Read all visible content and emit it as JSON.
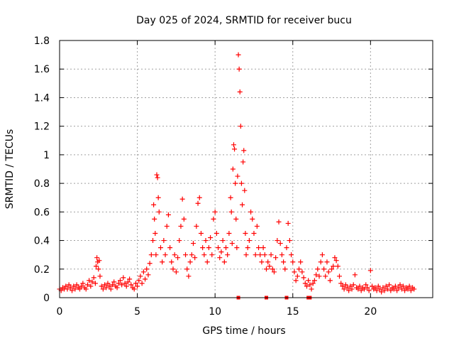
{
  "chart_data": {
    "type": "scatter",
    "title": "Day 025 of 2024, SRMTID for receiver bucu",
    "xlabel": "GPS time / hours",
    "ylabel": "SRMTID / TECUs",
    "xlim": [
      0,
      24
    ],
    "ylim": [
      0,
      1.8
    ],
    "x_ticks": [
      0,
      5,
      10,
      15,
      20
    ],
    "x_tick_labels": [
      "0",
      "5",
      "10",
      "15",
      "20"
    ],
    "y_ticks": [
      0,
      0.2,
      0.4,
      0.6,
      0.8,
      1.0,
      1.2,
      1.4,
      1.6,
      1.8
    ],
    "y_tick_labels": [
      "0",
      "0.2",
      "0.4",
      "0.6",
      "0.8",
      "1",
      "1.2",
      "1.4",
      "1.6",
      "1.8"
    ],
    "grid": true,
    "marker": "+",
    "color": "#ff0000",
    "series": [
      {
        "name": "SRMTID",
        "points": [
          [
            0.0,
            0.06
          ],
          [
            0.1,
            0.05
          ],
          [
            0.2,
            0.07
          ],
          [
            0.3,
            0.06
          ],
          [
            0.4,
            0.08
          ],
          [
            0.5,
            0.06
          ],
          [
            0.6,
            0.09
          ],
          [
            0.7,
            0.07
          ],
          [
            0.8,
            0.05
          ],
          [
            0.9,
            0.08
          ],
          [
            1.0,
            0.06
          ],
          [
            1.1,
            0.09
          ],
          [
            1.2,
            0.07
          ],
          [
            1.3,
            0.06
          ],
          [
            1.4,
            0.08
          ],
          [
            1.5,
            0.1
          ],
          [
            1.6,
            0.07
          ],
          [
            1.7,
            0.06
          ],
          [
            1.8,
            0.09
          ],
          [
            1.9,
            0.12
          ],
          [
            2.0,
            0.08
          ],
          [
            2.1,
            0.11
          ],
          [
            2.2,
            0.14
          ],
          [
            2.3,
            0.1
          ],
          [
            2.35,
            0.22
          ],
          [
            2.4,
            0.28
          ],
          [
            2.45,
            0.25
          ],
          [
            2.5,
            0.2
          ],
          [
            2.55,
            0.26
          ],
          [
            2.6,
            0.15
          ],
          [
            2.7,
            0.08
          ],
          [
            2.8,
            0.06
          ],
          [
            2.9,
            0.09
          ],
          [
            3.0,
            0.07
          ],
          [
            3.1,
            0.1
          ],
          [
            3.2,
            0.08
          ],
          [
            3.3,
            0.06
          ],
          [
            3.4,
            0.09
          ],
          [
            3.5,
            0.11
          ],
          [
            3.6,
            0.08
          ],
          [
            3.7,
            0.07
          ],
          [
            3.8,
            0.1
          ],
          [
            3.9,
            0.12
          ],
          [
            4.0,
            0.09
          ],
          [
            4.1,
            0.14
          ],
          [
            4.2,
            0.1
          ],
          [
            4.3,
            0.08
          ],
          [
            4.4,
            0.11
          ],
          [
            4.5,
            0.13
          ],
          [
            4.6,
            0.09
          ],
          [
            4.7,
            0.07
          ],
          [
            4.8,
            0.06
          ],
          [
            4.9,
            0.1
          ],
          [
            5.0,
            0.08
          ],
          [
            5.1,
            0.12
          ],
          [
            5.2,
            0.15
          ],
          [
            5.3,
            0.1
          ],
          [
            5.4,
            0.18
          ],
          [
            5.5,
            0.13
          ],
          [
            5.6,
            0.2
          ],
          [
            5.7,
            0.16
          ],
          [
            5.8,
            0.24
          ],
          [
            5.9,
            0.3
          ],
          [
            6.0,
            0.4
          ],
          [
            6.05,
            0.65
          ],
          [
            6.1,
            0.55
          ],
          [
            6.15,
            0.45
          ],
          [
            6.2,
            0.3
          ],
          [
            6.25,
            0.86
          ],
          [
            6.3,
            0.84
          ],
          [
            6.35,
            0.7
          ],
          [
            6.4,
            0.6
          ],
          [
            6.5,
            0.35
          ],
          [
            6.6,
            0.25
          ],
          [
            6.7,
            0.4
          ],
          [
            6.8,
            0.3
          ],
          [
            6.9,
            0.5
          ],
          [
            7.0,
            0.58
          ],
          [
            7.1,
            0.35
          ],
          [
            7.2,
            0.25
          ],
          [
            7.3,
            0.2
          ],
          [
            7.4,
            0.3
          ],
          [
            7.5,
            0.18
          ],
          [
            7.6,
            0.28
          ],
          [
            7.7,
            0.4
          ],
          [
            7.8,
            0.5
          ],
          [
            7.9,
            0.69
          ],
          [
            8.0,
            0.55
          ],
          [
            8.1,
            0.3
          ],
          [
            8.2,
            0.2
          ],
          [
            8.3,
            0.15
          ],
          [
            8.4,
            0.25
          ],
          [
            8.5,
            0.3
          ],
          [
            8.6,
            0.38
          ],
          [
            8.7,
            0.28
          ],
          [
            8.8,
            0.5
          ],
          [
            8.9,
            0.66
          ],
          [
            9.0,
            0.7
          ],
          [
            9.1,
            0.45
          ],
          [
            9.2,
            0.35
          ],
          [
            9.3,
            0.3
          ],
          [
            9.4,
            0.4
          ],
          [
            9.5,
            0.25
          ],
          [
            9.6,
            0.35
          ],
          [
            9.7,
            0.42
          ],
          [
            9.8,
            0.3
          ],
          [
            9.9,
            0.55
          ],
          [
            10.0,
            0.6
          ],
          [
            10.1,
            0.45
          ],
          [
            10.2,
            0.35
          ],
          [
            10.3,
            0.28
          ],
          [
            10.4,
            0.32
          ],
          [
            10.5,
            0.4
          ],
          [
            10.6,
            0.25
          ],
          [
            10.7,
            0.35
          ],
          [
            10.8,
            0.3
          ],
          [
            10.9,
            0.45
          ],
          [
            11.0,
            0.7
          ],
          [
            11.05,
            0.6
          ],
          [
            11.1,
            0.38
          ],
          [
            11.15,
            0.9
          ],
          [
            11.2,
            1.07
          ],
          [
            11.25,
            1.04
          ],
          [
            11.3,
            0.8
          ],
          [
            11.35,
            0.55
          ],
          [
            11.4,
            0.35
          ],
          [
            11.45,
            0.85
          ],
          [
            11.5,
            1.7
          ],
          [
            11.55,
            1.6
          ],
          [
            11.6,
            1.44
          ],
          [
            11.65,
            1.2
          ],
          [
            11.7,
            0.8
          ],
          [
            11.75,
            0.65
          ],
          [
            11.8,
            0.95
          ],
          [
            11.85,
            1.03
          ],
          [
            11.9,
            0.75
          ],
          [
            11.95,
            0.45
          ],
          [
            12.0,
            0.3
          ],
          [
            12.1,
            0.35
          ],
          [
            12.2,
            0.4
          ],
          [
            12.3,
            0.6
          ],
          [
            12.4,
            0.55
          ],
          [
            12.5,
            0.45
          ],
          [
            12.6,
            0.3
          ],
          [
            12.7,
            0.5
          ],
          [
            12.8,
            0.35
          ],
          [
            12.9,
            0.3
          ],
          [
            13.0,
            0.25
          ],
          [
            13.1,
            0.35
          ],
          [
            13.2,
            0.3
          ],
          [
            13.3,
            0.2
          ],
          [
            13.4,
            0.25
          ],
          [
            13.5,
            0.22
          ],
          [
            13.6,
            0.3
          ],
          [
            13.7,
            0.2
          ],
          [
            13.8,
            0.18
          ],
          [
            13.9,
            0.28
          ],
          [
            14.0,
            0.4
          ],
          [
            14.1,
            0.53
          ],
          [
            14.2,
            0.38
          ],
          [
            14.3,
            0.3
          ],
          [
            14.4,
            0.25
          ],
          [
            14.5,
            0.2
          ],
          [
            14.6,
            0.35
          ],
          [
            14.7,
            0.52
          ],
          [
            14.8,
            0.4
          ],
          [
            14.9,
            0.3
          ],
          [
            15.0,
            0.25
          ],
          [
            15.1,
            0.18
          ],
          [
            15.2,
            0.12
          ],
          [
            15.3,
            0.15
          ],
          [
            15.4,
            0.2
          ],
          [
            15.5,
            0.25
          ],
          [
            15.6,
            0.18
          ],
          [
            15.7,
            0.14
          ],
          [
            15.8,
            0.1
          ],
          [
            15.9,
            0.08
          ],
          [
            16.0,
            0.12
          ],
          [
            16.1,
            0.09
          ],
          [
            16.2,
            0.06
          ],
          [
            16.3,
            0.1
          ],
          [
            16.4,
            0.12
          ],
          [
            16.5,
            0.16
          ],
          [
            16.6,
            0.2
          ],
          [
            16.7,
            0.15
          ],
          [
            16.8,
            0.25
          ],
          [
            16.9,
            0.3
          ],
          [
            17.0,
            0.2
          ],
          [
            17.1,
            0.15
          ],
          [
            17.2,
            0.25
          ],
          [
            17.3,
            0.18
          ],
          [
            17.4,
            0.12
          ],
          [
            17.5,
            0.2
          ],
          [
            17.6,
            0.22
          ],
          [
            17.7,
            0.28
          ],
          [
            17.8,
            0.26
          ],
          [
            17.9,
            0.22
          ],
          [
            18.0,
            0.15
          ],
          [
            18.1,
            0.1
          ],
          [
            18.2,
            0.08
          ],
          [
            18.3,
            0.06
          ],
          [
            18.4,
            0.09
          ],
          [
            18.5,
            0.07
          ],
          [
            18.6,
            0.05
          ],
          [
            18.7,
            0.08
          ],
          [
            18.8,
            0.06
          ],
          [
            18.9,
            0.09
          ],
          [
            19.0,
            0.16
          ],
          [
            19.1,
            0.07
          ],
          [
            19.2,
            0.06
          ],
          [
            19.3,
            0.08
          ],
          [
            19.4,
            0.05
          ],
          [
            19.5,
            0.07
          ],
          [
            19.6,
            0.06
          ],
          [
            19.7,
            0.09
          ],
          [
            19.8,
            0.07
          ],
          [
            19.9,
            0.05
          ],
          [
            20.0,
            0.19
          ],
          [
            20.1,
            0.08
          ],
          [
            20.2,
            0.06
          ],
          [
            20.3,
            0.07
          ],
          [
            20.4,
            0.05
          ],
          [
            20.5,
            0.08
          ],
          [
            20.6,
            0.06
          ],
          [
            20.7,
            0.04
          ],
          [
            20.8,
            0.07
          ],
          [
            20.9,
            0.05
          ],
          [
            21.0,
            0.08
          ],
          [
            21.1,
            0.06
          ],
          [
            21.2,
            0.09
          ],
          [
            21.3,
            0.05
          ],
          [
            21.4,
            0.07
          ],
          [
            21.5,
            0.06
          ],
          [
            21.6,
            0.08
          ],
          [
            21.7,
            0.05
          ],
          [
            21.8,
            0.07
          ],
          [
            21.9,
            0.09
          ],
          [
            22.0,
            0.06
          ],
          [
            22.1,
            0.08
          ],
          [
            22.2,
            0.05
          ],
          [
            22.3,
            0.07
          ],
          [
            22.4,
            0.06
          ],
          [
            22.5,
            0.08
          ],
          [
            22.6,
            0.05
          ],
          [
            22.7,
            0.07
          ],
          [
            22.8,
            0.06
          ]
        ]
      }
    ],
    "zero_markers": [
      11.5,
      13.3,
      14.6,
      16.0,
      16.1
    ]
  }
}
